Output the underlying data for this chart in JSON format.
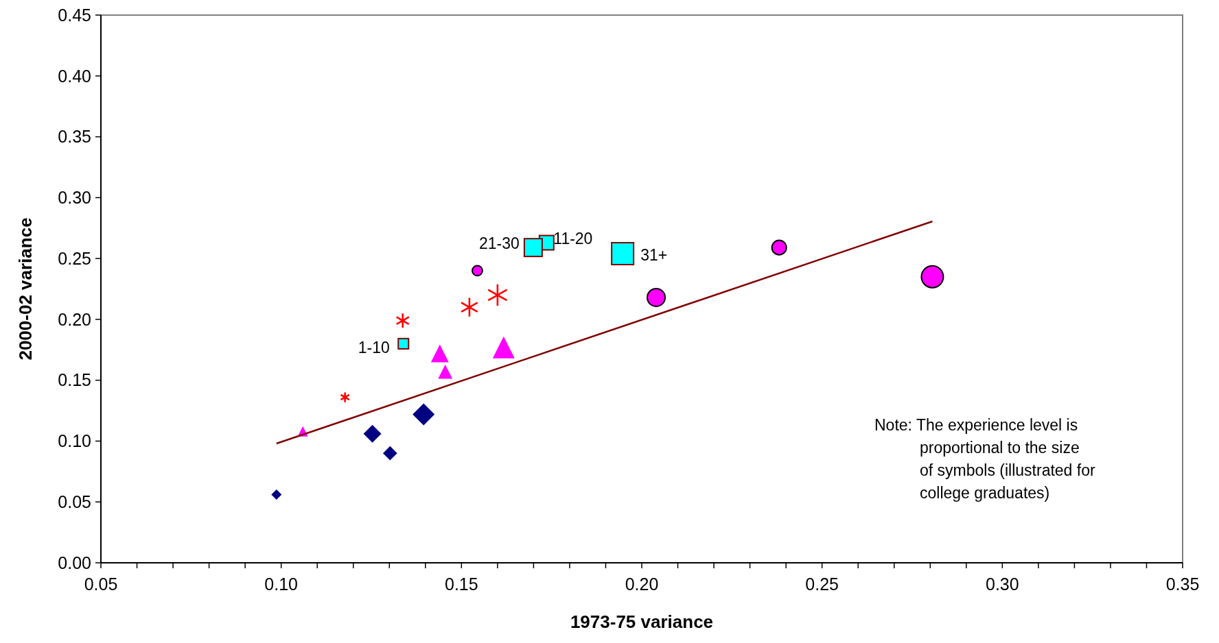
{
  "chart_data": {
    "type": "bubble",
    "xlabel": "1973-75 variance",
    "ylabel": "2000-02 variance",
    "xlim": [
      0.05,
      0.35
    ],
    "ylim": [
      0,
      0.45
    ],
    "xticks": [
      0.05,
      {
        "value": 0.06,
        "label": null
      },
      {
        "value": 0.07,
        "label": null
      },
      {
        "value": 0.08,
        "label": null
      },
      {
        "value": 0.09,
        "label": null
      },
      {
        "value": 0.1,
        "label": "0.10"
      },
      {
        "value": 0.11,
        "label": null
      },
      {
        "value": 0.12,
        "label": null
      },
      {
        "value": 0.13,
        "label": null
      },
      {
        "value": 0.14,
        "label": null
      },
      0.15,
      {
        "value": 0.16,
        "label": null
      },
      {
        "value": 0.17,
        "label": null
      },
      {
        "value": 0.18,
        "label": null
      },
      {
        "value": 0.19,
        "label": null
      },
      {
        "value": 0.2,
        "label": "0.20"
      },
      {
        "value": 0.21,
        "label": null
      },
      {
        "value": 0.22,
        "label": null
      },
      {
        "value": 0.23,
        "label": null
      },
      {
        "value": 0.24,
        "label": null
      },
      0.25,
      {
        "value": 0.26,
        "label": null
      },
      {
        "value": 0.27,
        "label": null
      },
      {
        "value": 0.28,
        "label": null
      },
      {
        "value": 0.29,
        "label": null
      },
      {
        "value": 0.3,
        "label": "0.30"
      },
      {
        "value": 0.31,
        "label": null
      },
      {
        "value": 0.32,
        "label": null
      },
      {
        "value": 0.33,
        "label": null
      },
      {
        "value": 0.34,
        "label": null
      },
      0.35
    ],
    "yticks": [
      {
        "value": 0,
        "label": "0.00"
      },
      0.05,
      {
        "value": 0.1,
        "label": "0.10"
      },
      0.15,
      {
        "value": 0.2,
        "label": "0.20"
      },
      0.25,
      {
        "value": 0.3,
        "label": "0.30"
      },
      0.35,
      {
        "value": 0.4,
        "label": "0.40"
      },
      0.45
    ],
    "grid": false,
    "series": [
      {
        "marker": "diamond",
        "color": "#000080",
        "x": [
          0.0987,
          0.1302,
          0.1253,
          0.1395
        ],
        "values": [
          0.056,
          0.09,
          0.106,
          0.122
        ],
        "sizes": [
          0.11,
          0.21,
          0.33,
          0.5
        ]
      },
      {
        "marker": "star",
        "color": "#ff0000",
        "x": [
          0.1177,
          0.1337,
          0.1522,
          0.16
        ],
        "values": [
          0.136,
          0.199,
          0.21,
          0.22
        ],
        "sizes": [
          0.11,
          0.16,
          0.21,
          0.24
        ]
      },
      {
        "marker": "triangle",
        "color": "#ff00ff",
        "x": [
          0.106,
          0.1455,
          0.144,
          0.1617
        ],
        "values": [
          0.108,
          0.157,
          0.172,
          0.177
        ],
        "sizes": [
          0.11,
          0.21,
          0.33,
          0.5
        ]
      },
      {
        "marker": "square",
        "color": "#00ffff",
        "x": [
          0.1339,
          0.1736,
          0.1699,
          0.1947
        ],
        "values": [
          0.18,
          0.263,
          0.259,
          0.254
        ],
        "sizes": [
          0.22,
          0.43,
          0.66,
          1
        ]
      },
      {
        "marker": "circle",
        "color": "#ff00ff",
        "x": [
          0.1544,
          0.2381,
          0.204,
          0.2806
        ],
        "values": [
          0.24,
          0.259,
          0.218,
          0.235
        ],
        "sizes": [
          0.17,
          0.34,
          0.52,
          0.785
        ]
      },
      {
        "type": "line",
        "color": "#800000",
        "x": [
          0.0987,
          0.2806
        ],
        "values": [
          0.098,
          0.2805
        ]
      }
    ],
    "annotations": [
      {
        "text": "1-10",
        "x": 0.1339,
        "y": 0.18
      },
      {
        "text": "11-20",
        "x": 0.1736,
        "y": 0.263
      },
      {
        "text": "21-30",
        "x": 0.1699,
        "y": 0.259
      },
      {
        "text": "31+",
        "x": 0.1947,
        "y": 0.254
      },
      "Note: The experience level is\nproportional to the size\nof symbols (illustrated for\ncollege graduates)"
    ]
  }
}
